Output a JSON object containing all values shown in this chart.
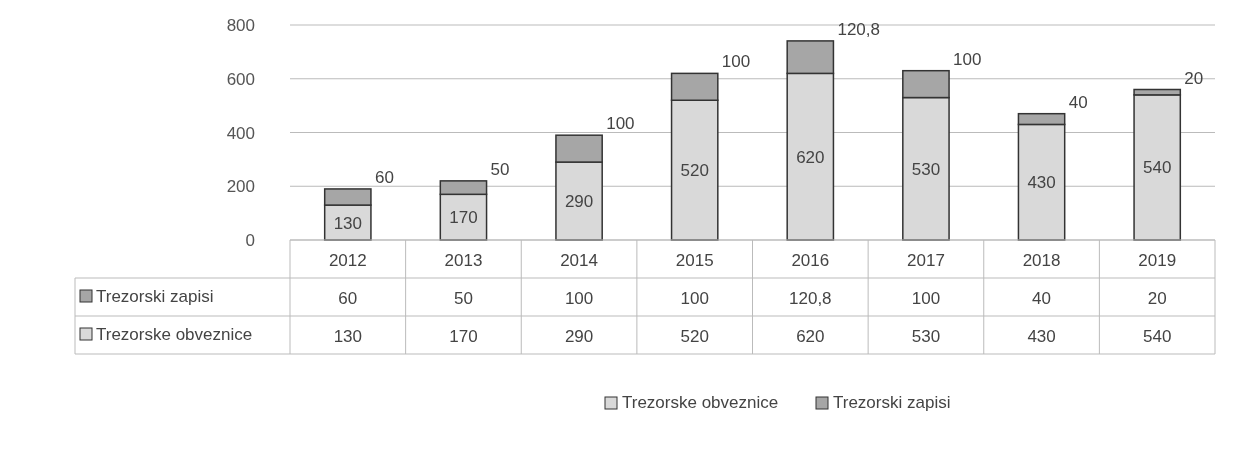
{
  "chart_data": {
    "type": "bar",
    "stacked": true,
    "categories": [
      "2012",
      "2013",
      "2014",
      "2015",
      "2016",
      "2017",
      "2018",
      "2019"
    ],
    "series": [
      {
        "name": "Trezorske obveznice",
        "color": "#d9d9d9",
        "values": [
          130,
          170,
          290,
          520,
          620,
          530,
          430,
          540
        ],
        "value_labels": [
          "130",
          "170",
          "290",
          "520",
          "620",
          "530",
          "430",
          "540"
        ]
      },
      {
        "name": "Trezorski zapisi",
        "color": "#a6a6a6",
        "values": [
          60,
          50,
          100,
          100,
          120.8,
          100,
          40,
          20
        ],
        "value_labels": [
          "60",
          "50",
          "100",
          "100",
          "120,8",
          "100",
          "40",
          "20"
        ]
      }
    ],
    "ylim": [
      0,
      800
    ],
    "yticks": [
      0,
      200,
      400,
      600,
      800
    ],
    "grid": "y",
    "legend": "bottom"
  }
}
